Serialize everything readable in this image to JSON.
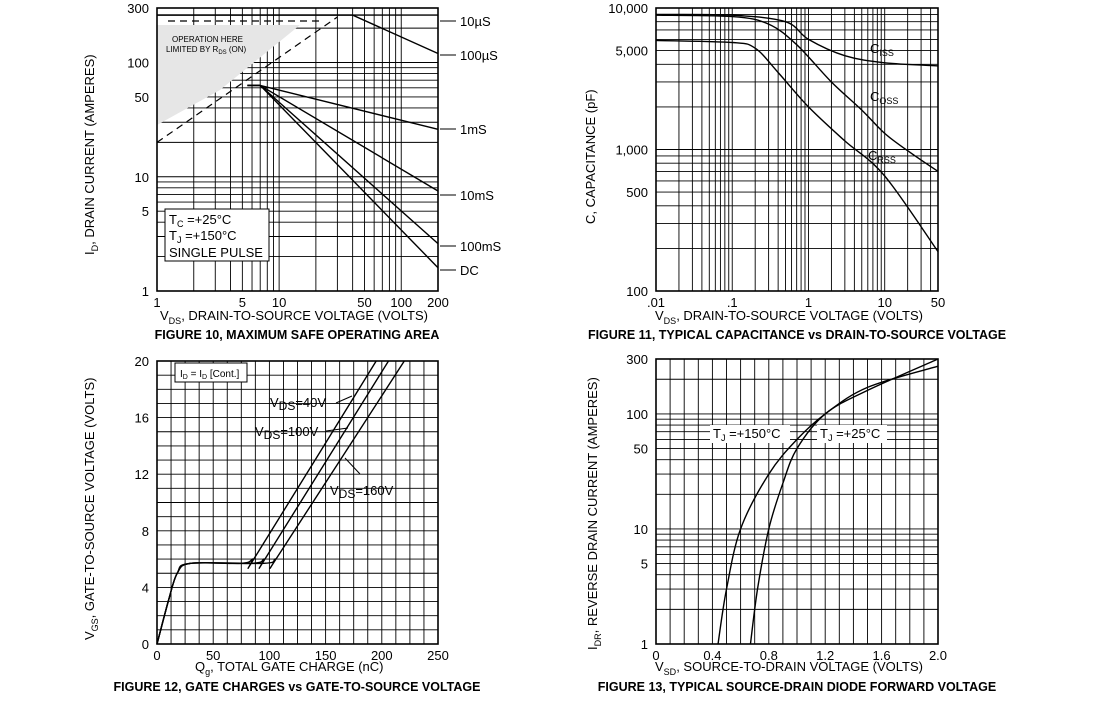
{
  "chart_data": [
    {
      "id": "fig10",
      "type": "line",
      "title": "FIGURE 10, MAXIMUM SAFE OPERATING AREA",
      "xlabel_sub": "DS",
      "xlabel": ", DRAIN-TO-SOURCE VOLTAGE (VOLTS)",
      "xlabel_prefix": "V",
      "ylabel": ", DRAIN CURRENT (AMPERES)",
      "ylabel_prefix": "I",
      "ylabel_sub": "D",
      "xscale": "log",
      "yscale": "log",
      "xlim": [
        1,
        200
      ],
      "ylim": [
        1,
        300
      ],
      "xticks": [
        "1",
        "5",
        "10",
        "50",
        "100",
        "200"
      ],
      "yticks": [
        "1",
        "5",
        "10",
        "50",
        "100",
        "300"
      ],
      "annotation": {
        "line1": "OPERATION HERE",
        "line2": "LIMITED BY R",
        "line2_sub": "DS",
        "line2_tail": " (ON)"
      },
      "legend_box": {
        "line1": "T",
        "line1_sub": "C",
        "line1_tail": " =+25°C",
        "line2": "T",
        "line2_sub": "J",
        "line2_tail": " =+150°C",
        "line3": "SINGLE PULSE"
      },
      "series": [
        {
          "name": "10µS",
          "points": [
            [
              1,
              260
            ],
            [
              200,
              260
            ]
          ]
        },
        {
          "name": "100µS",
          "points": [
            [
              1,
              260
            ],
            [
              40,
              260
            ],
            [
              200,
              120
            ]
          ]
        },
        {
          "name": "1mS",
          "points": [
            [
              5.5,
              63
            ],
            [
              7,
              63
            ],
            [
              200,
              26
            ]
          ]
        },
        {
          "name": "10mS",
          "points": [
            [
              5.5,
              63
            ],
            [
              7,
              63
            ],
            [
              200,
              7.5
            ]
          ]
        },
        {
          "name": "100mS",
          "points": [
            [
              5.5,
              63
            ],
            [
              7,
              63
            ],
            [
              200,
              2.6
            ]
          ]
        },
        {
          "name": "DC",
          "points": [
            [
              5.5,
              63
            ],
            [
              7,
              63
            ],
            [
              200,
              1.6
            ]
          ]
        },
        {
          "name": "RDS(on) limit",
          "points": [
            [
              1,
              20
            ],
            [
              30,
              250
            ]
          ]
        }
      ]
    },
    {
      "id": "fig11",
      "type": "line",
      "title": "FIGURE 11, TYPICAL CAPACITANCE vs DRAIN-TO-SOURCE VOLTAGE",
      "xlabel_prefix": "V",
      "xlabel_sub": "DS",
      "xlabel": ", DRAIN-TO-SOURCE VOLTAGE (VOLTS)",
      "ylabel": "C, CAPACITANCE (pF)",
      "xscale": "log",
      "yscale": "log",
      "xlim": [
        0.01,
        50
      ],
      "ylim": [
        100,
        10000
      ],
      "xticks": [
        ".01",
        ".1",
        "1",
        "10",
        "50"
      ],
      "yticks": [
        "100",
        "500",
        "1,000",
        "5,000",
        "10,000"
      ],
      "series": [
        {
          "name": "Ciss",
          "label": "C",
          "label_sub": "ISS",
          "points": [
            [
              0.01,
              9000
            ],
            [
              0.1,
              8900
            ],
            [
              0.5,
              8000
            ],
            [
              1,
              6000
            ],
            [
              3,
              4600
            ],
            [
              10,
              4100
            ],
            [
              50,
              3900
            ]
          ]
        },
        {
          "name": "Coss",
          "label": "C",
          "label_sub": "OSS",
          "points": [
            [
              0.01,
              8900
            ],
            [
              0.1,
              8700
            ],
            [
              0.3,
              7700
            ],
            [
              0.7,
              5500
            ],
            [
              2,
              3000
            ],
            [
              5,
              1900
            ],
            [
              10,
              1300
            ],
            [
              20,
              980
            ],
            [
              50,
              700
            ]
          ]
        },
        {
          "name": "Crss",
          "label": "C",
          "label_sub": "RSS",
          "points": [
            [
              0.01,
              5900
            ],
            [
              0.1,
              5700
            ],
            [
              0.2,
              5200
            ],
            [
              0.4,
              3500
            ],
            [
              1,
              2000
            ],
            [
              3,
              1150
            ],
            [
              10,
              650
            ],
            [
              50,
              190
            ]
          ]
        }
      ]
    },
    {
      "id": "fig12",
      "type": "line",
      "title": "FIGURE 12, GATE CHARGES vs GATE-TO-SOURCE VOLTAGE",
      "xlabel_prefix": "Q",
      "xlabel_sub": "g",
      "xlabel": ", TOTAL GATE CHARGE (nC)",
      "ylabel_prefix": "V",
      "ylabel_sub": "GS",
      "ylabel": ", GATE-TO-SOURCE VOLTAGE (VOLTS)",
      "xscale": "linear",
      "yscale": "linear",
      "xlim": [
        0,
        250
      ],
      "ylim": [
        0,
        20
      ],
      "xticks": [
        "0",
        "50",
        "100",
        "150",
        "200",
        "250"
      ],
      "yticks": [
        "0",
        "4",
        "8",
        "12",
        "16",
        "20"
      ],
      "condition": {
        "text": "I",
        "sub": "D",
        "mid": " = I",
        "sub2": "D",
        "tail": " [Cont.]"
      },
      "series": [
        {
          "name": "VDS=40V",
          "label": "V",
          "label_sub": "DS",
          "label_tail": "=40V",
          "points": [
            [
              0,
              0
            ],
            [
              10,
              3
            ],
            [
              18,
              5
            ],
            [
              30,
              5.7
            ],
            [
              75,
              5.7
            ],
            [
              85,
              6
            ],
            [
              90,
              6.5
            ],
            [
              195,
              20
            ]
          ]
        },
        {
          "name": "VDS=100V",
          "label": "V",
          "label_sub": "DS",
          "label_tail": "=100V",
          "points": [
            [
              0,
              0
            ],
            [
              10,
              3
            ],
            [
              18,
              5
            ],
            [
              30,
              5.7
            ],
            [
              85,
              5.7
            ],
            [
              95,
              6
            ],
            [
              100,
              6.5
            ],
            [
              206,
              20
            ]
          ]
        },
        {
          "name": "VDS=160V",
          "label": "V",
          "label_sub": "DS",
          "label_tail": "=160V",
          "points": [
            [
              0,
              0
            ],
            [
              10,
              3
            ],
            [
              18,
              5
            ],
            [
              30,
              5.7
            ],
            [
              95,
              5.7
            ],
            [
              105,
              6
            ],
            [
              110,
              6.5
            ],
            [
              220,
              20
            ]
          ]
        }
      ]
    },
    {
      "id": "fig13",
      "type": "line",
      "title": "FIGURE 13, TYPICAL SOURCE-DRAIN DIODE FORWARD VOLTAGE",
      "xlabel_prefix": "V",
      "xlabel_sub": "SD",
      "xlabel": ", SOURCE-TO-DRAIN VOLTAGE (VOLTS)",
      "ylabel_prefix": "I",
      "ylabel_sub": "DR",
      "ylabel": ", REVERSE DRAIN CURRENT (AMPERES)",
      "xscale": "linear",
      "yscale": "log",
      "xlim": [
        0,
        2.0
      ],
      "ylim": [
        1,
        300
      ],
      "xticks": [
        "0",
        "0.4",
        "0.8",
        "1.2",
        "1.6",
        "2.0"
      ],
      "yticks": [
        "1",
        "5",
        "10",
        "50",
        "100",
        "300"
      ],
      "series": [
        {
          "name": "TJ=+150°C",
          "label": "T",
          "label_sub": "J",
          "label_tail": " =+150°C",
          "points": [
            [
              0.44,
              1
            ],
            [
              0.5,
              3
            ],
            [
              0.6,
              10
            ],
            [
              0.8,
              30
            ],
            [
              1.0,
              60
            ],
            [
              1.2,
              100
            ],
            [
              1.5,
              170
            ],
            [
              2.0,
              260
            ]
          ]
        },
        {
          "name": "TJ=+25°C",
          "label": "T",
          "label_sub": "J",
          "label_tail": " =+25°C",
          "points": [
            [
              0.67,
              1
            ],
            [
              0.72,
              3
            ],
            [
              0.8,
              10
            ],
            [
              0.9,
              25
            ],
            [
              1.0,
              50
            ],
            [
              1.2,
              100
            ],
            [
              1.5,
              160
            ],
            [
              2.0,
              300
            ]
          ]
        }
      ]
    }
  ]
}
